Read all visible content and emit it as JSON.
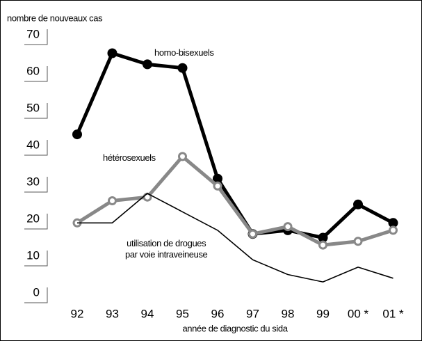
{
  "chart_data": {
    "type": "line",
    "y_axis_label": "nombre de nouveaux cas",
    "x_axis_label": "année de diagnostic du sida",
    "categories": [
      "92",
      "93",
      "94",
      "95",
      "96",
      "97",
      "98",
      "99",
      "00 *",
      "01 *"
    ],
    "ylim": [
      0,
      70
    ],
    "yticks": [
      0,
      10,
      20,
      30,
      40,
      50,
      60,
      70
    ],
    "series": [
      {
        "name": "homo-bisexuels",
        "color": "#000000",
        "marker": "filled",
        "values": [
          43,
          65,
          62,
          61,
          31,
          16,
          17,
          15,
          24,
          19
        ]
      },
      {
        "name": "hétérosexuels",
        "color": "#888888",
        "marker": "open",
        "values": [
          19,
          25,
          26,
          37,
          29,
          16,
          18,
          13,
          14,
          17
        ]
      },
      {
        "name": "utilisation de drogues\npar voie intraveineuse",
        "color": "#000000",
        "marker": "none",
        "values": [
          19,
          19,
          27,
          22,
          17,
          9,
          5,
          3,
          7,
          4
        ]
      }
    ]
  }
}
